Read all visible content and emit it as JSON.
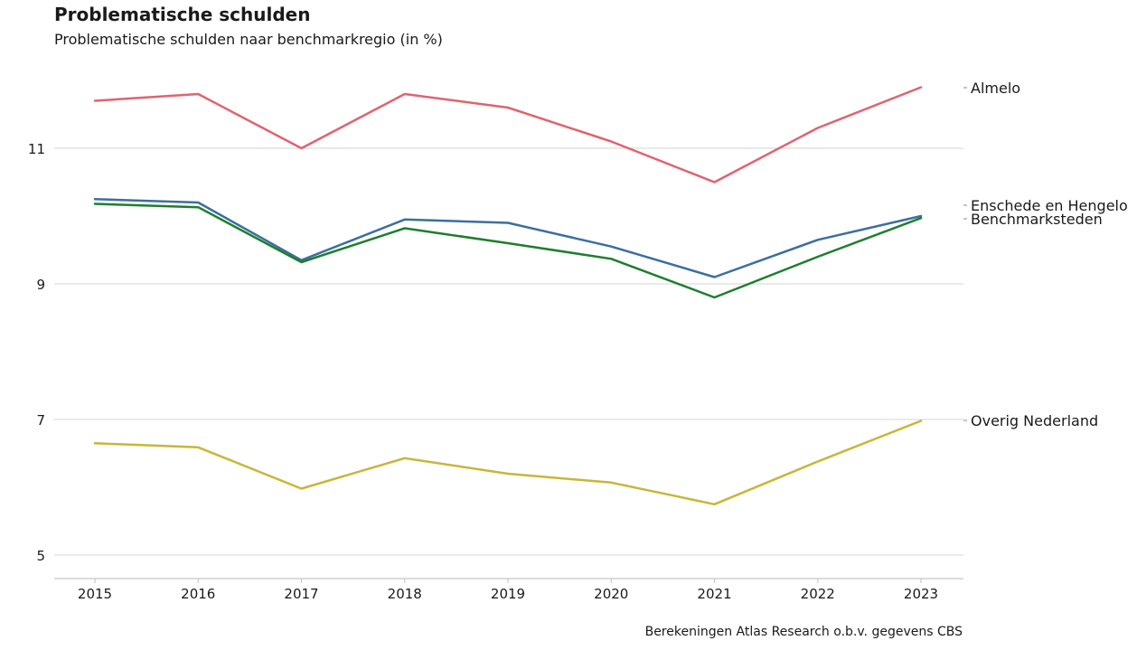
{
  "chart_data": {
    "type": "line",
    "title": "Problematische schulden",
    "subtitle": "Problematische schulden naar benchmarkregio (in %)",
    "caption": "Berekeningen Atlas Research o.b.v. gegevens CBS",
    "x": [
      "2015",
      "2016",
      "2017",
      "2018",
      "2019",
      "2020",
      "2021",
      "2022",
      "2023"
    ],
    "ylim": [
      4.65,
      12.0
    ],
    "yticks": [
      5,
      7,
      9,
      11
    ],
    "grid": true,
    "legend": "direct-labels-right",
    "series": [
      {
        "name": "Almelo",
        "color": "#e0636f",
        "values": [
          11.7,
          11.8,
          11.0,
          11.8,
          11.6,
          11.1,
          10.5,
          11.3,
          11.9
        ]
      },
      {
        "name": "Enschede en Hengelo",
        "color": "#3a6fa0",
        "values": [
          10.25,
          10.2,
          9.35,
          9.95,
          9.9,
          9.55,
          9.1,
          9.65,
          10.0
        ]
      },
      {
        "name": "Benchmarksteden",
        "color": "#1e7e2e",
        "values": [
          10.18,
          10.13,
          9.32,
          9.82,
          9.6,
          9.37,
          8.8,
          9.4,
          9.97
        ]
      },
      {
        "name": "Overig Nederland",
        "color": "#c8b637",
        "values": [
          6.65,
          6.59,
          5.98,
          6.43,
          6.2,
          6.07,
          5.75,
          6.38,
          6.98
        ]
      }
    ]
  }
}
